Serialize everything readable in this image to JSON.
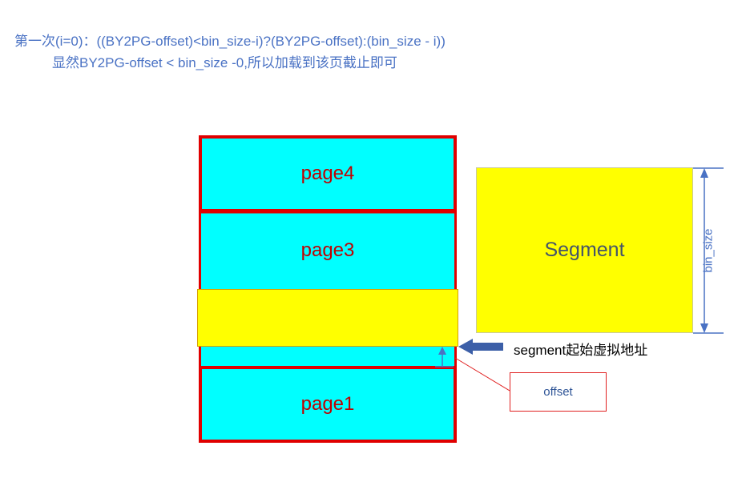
{
  "caption": {
    "line1": "第一次(i=0)：((BY2PG-offset)<bin_size-i)?(BY2PG-offset):(bin_size - i))",
    "line2": "显然BY2PG-offset < bin_size -0,所以加载到该页截止即可"
  },
  "pages": [
    {
      "label": "page4"
    },
    {
      "label": "page3"
    },
    {
      "label": "page1"
    }
  ],
  "segment": {
    "label": "Segment"
  },
  "dimension": {
    "label": "bin_size"
  },
  "arrow": {
    "label": "segment起始虚拟地址"
  },
  "callout": {
    "label": "offset"
  },
  "colors": {
    "page_fill": "#00ffff",
    "page_border": "#e00000",
    "segment_fill": "#ffff00",
    "caption_text": "#4a72c4",
    "arrow": "#3c5fa8"
  }
}
